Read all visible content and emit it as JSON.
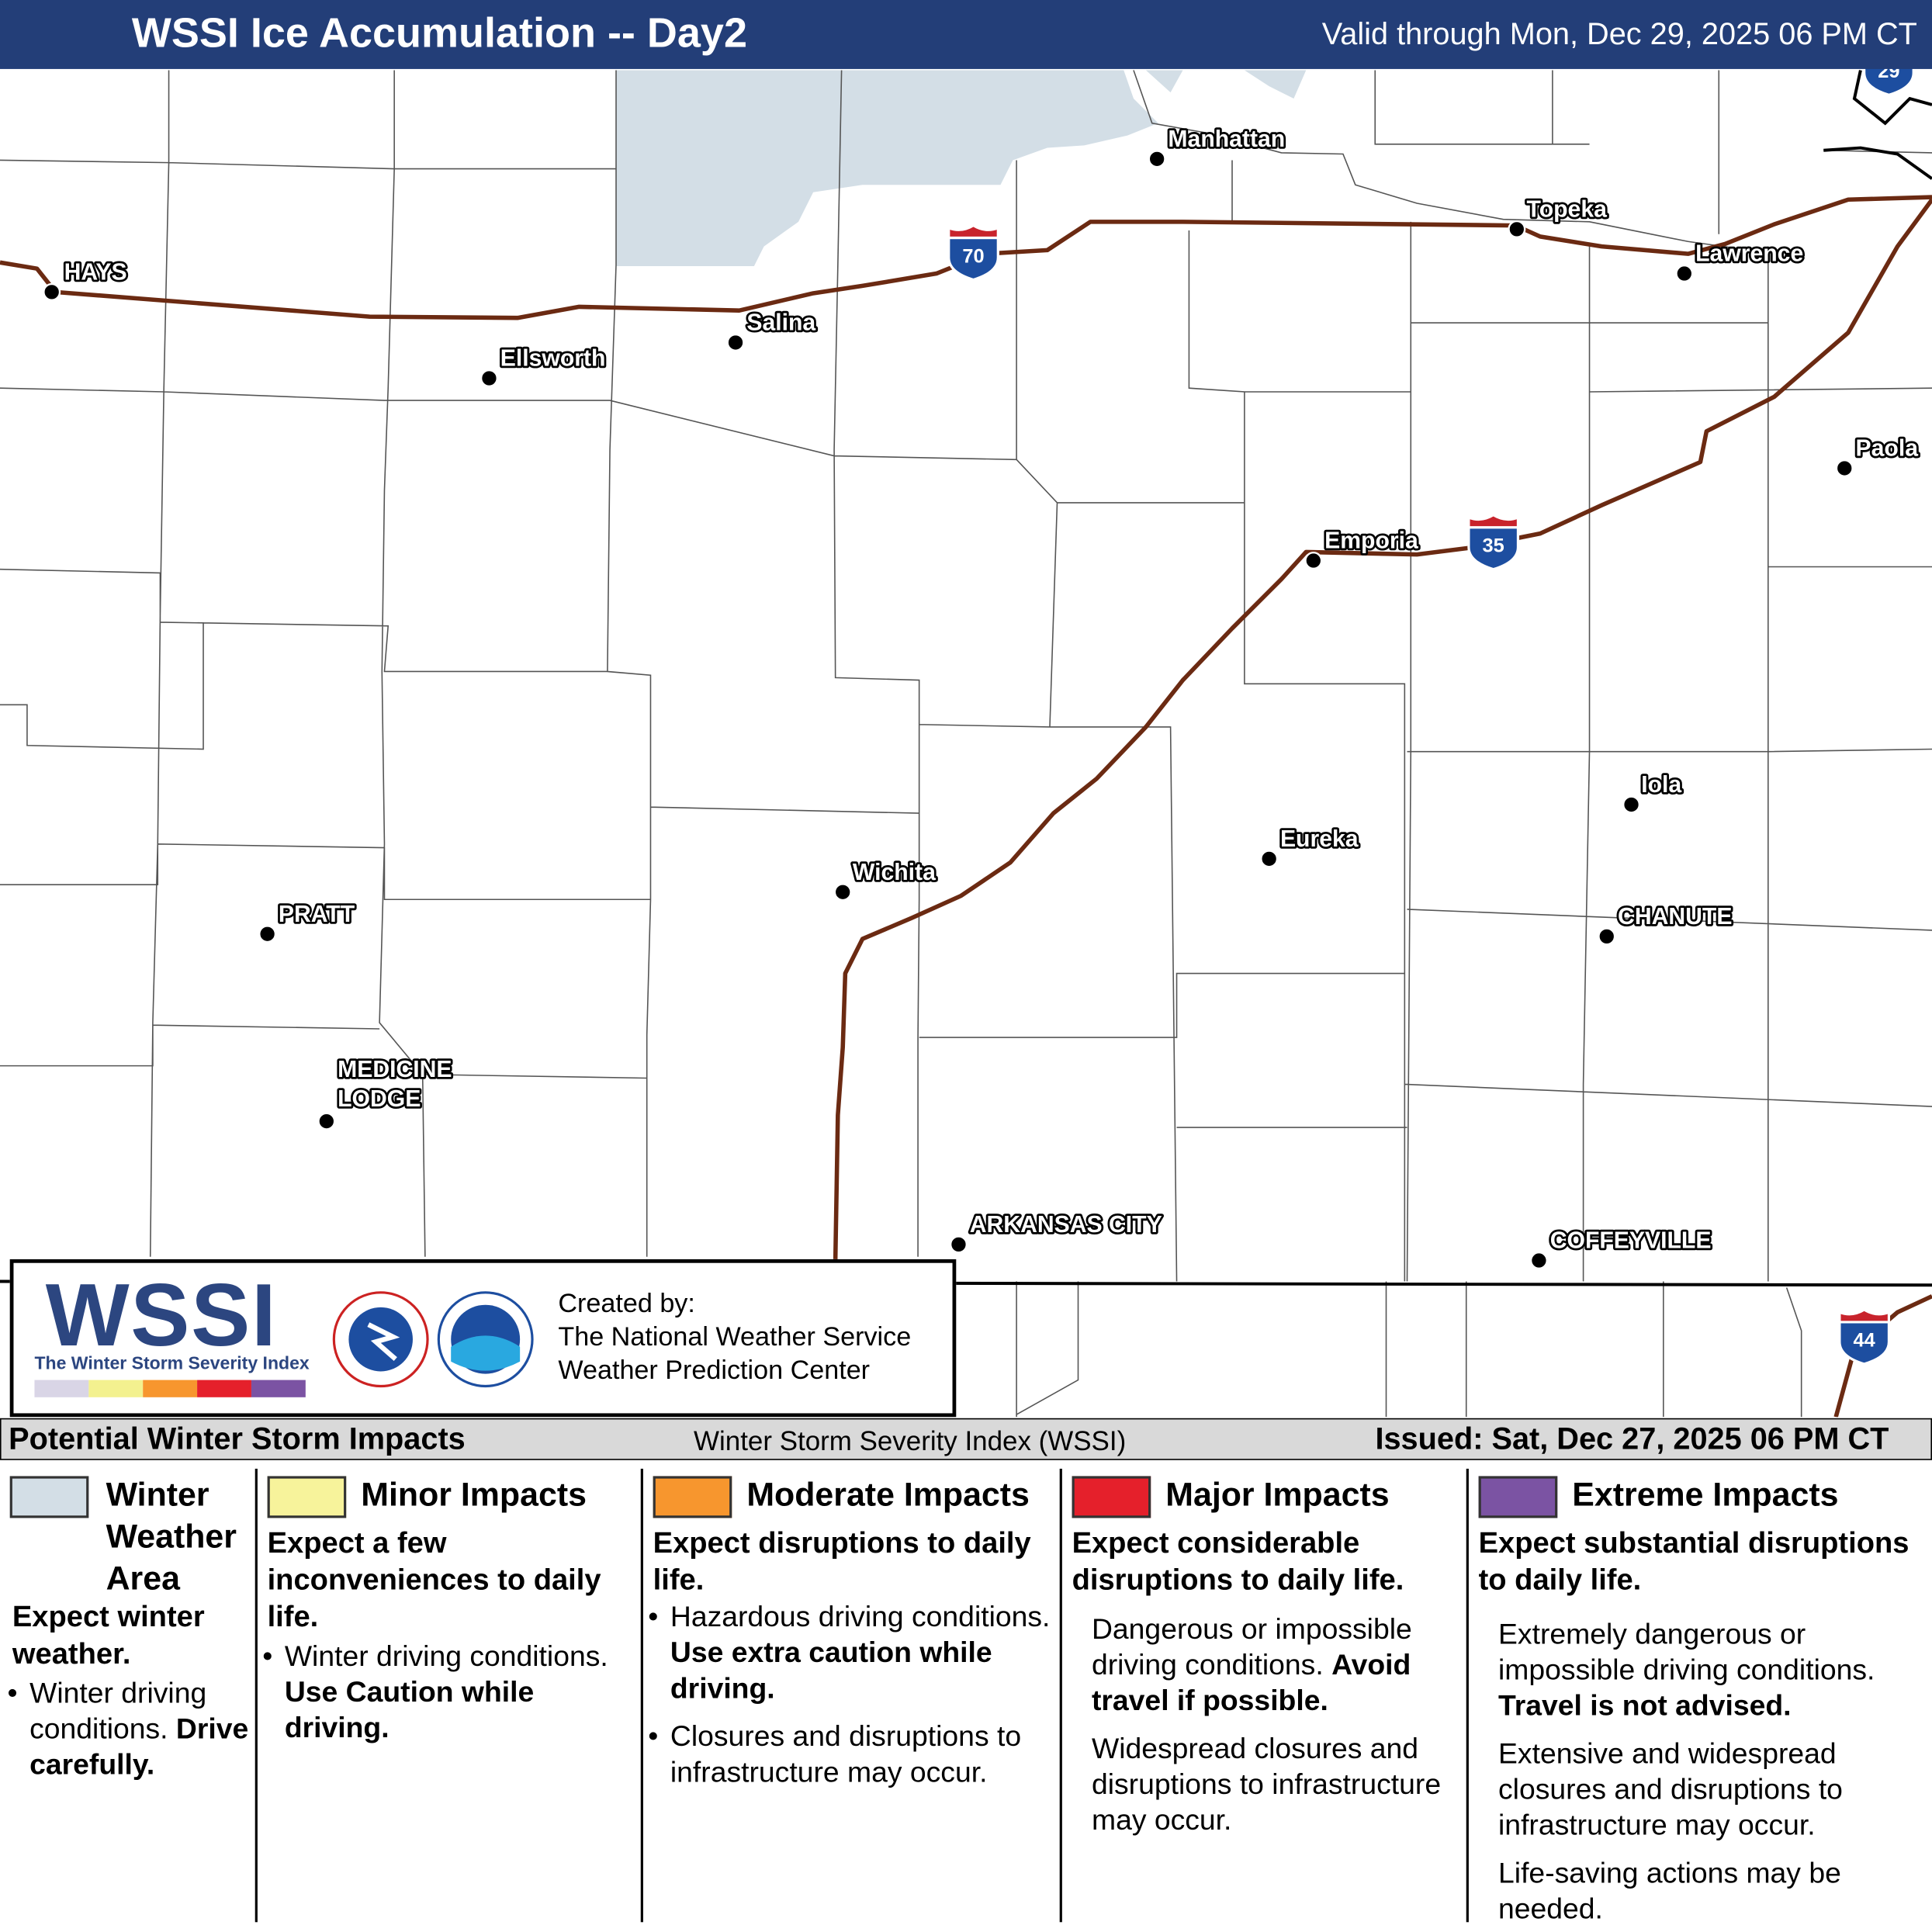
{
  "header": {
    "title": "WSSI Ice Accumulation -- Day2",
    "valid": "Valid through Mon, Dec 29, 2025 06 PM CT"
  },
  "map": {
    "cities": [
      {
        "lines": [
          "HAYS"
        ]
      },
      {
        "lines": [
          "Ellsworth"
        ]
      },
      {
        "lines": [
          "Salina"
        ]
      },
      {
        "lines": [
          "Manhattan"
        ]
      },
      {
        "lines": [
          "Topeka"
        ]
      },
      {
        "lines": [
          "Lawrence"
        ]
      },
      {
        "lines": [
          "Paola"
        ]
      },
      {
        "lines": [
          "Emporia"
        ]
      },
      {
        "lines": [
          "Wichita"
        ]
      },
      {
        "lines": [
          "Eureka"
        ]
      },
      {
        "lines": [
          "Iola"
        ]
      },
      {
        "lines": [
          "CHANUTE"
        ]
      },
      {
        "lines": [
          "PRATT"
        ]
      },
      {
        "lines": [
          "MEDICINE",
          "LODGE"
        ]
      },
      {
        "lines": [
          "ARKANSAS CITY"
        ]
      },
      {
        "lines": [
          "COFFEYVILLE"
        ]
      }
    ],
    "interstates": [
      "70",
      "35",
      "29",
      "44"
    ]
  },
  "credits": {
    "logo": "WSSI",
    "logo_subtitle": "The Winter Storm Severity Index",
    "strip_colors": [
      "#d9d5e6",
      "#f3f18f",
      "#f7962e",
      "#e5202b",
      "#7b53a3"
    ],
    "created_by": "Created by:",
    "org1": "The National Weather Service",
    "org2": "Weather Prediction Center"
  },
  "legend_bar": {
    "title": "Potential Winter Storm Impacts",
    "index": "Winter Storm Severity Index (WSSI)",
    "issued": "Issued: Sat, Dec 27, 2025 06 PM CT"
  },
  "categories": [
    {
      "name": "Winter Weather Area",
      "color": "#d3dee6",
      "headline": "Expect winter weather.",
      "paragraphs": [
        {
          "text": "Winter driving conditions.",
          "bold": "Drive carefully."
        }
      ]
    },
    {
      "name": "Minor Impacts",
      "color": "#f7f39b",
      "headline": "Expect a few inconveniences to daily life.",
      "paragraphs": [
        {
          "text": "Winter driving conditions.",
          "bold": "Use Caution while driving."
        }
      ]
    },
    {
      "name": "Moderate Impacts",
      "color": "#f7962e",
      "headline": "Expect disruptions to daily life.",
      "paragraphs": [
        {
          "text": "Hazardous driving conditions.",
          "bold": "Use extra caution while driving."
        },
        {
          "text": "Closures and disruptions to infrastructure may occur."
        }
      ]
    },
    {
      "name": "Major Impacts",
      "color": "#e5202b",
      "headline": "Expect considerable disruptions to daily life.",
      "paragraphs": [
        {
          "text": "Dangerous or impossible driving conditions.",
          "bold": "Avoid travel if possible."
        },
        {
          "text": "Widespread closures and disruptions to infrastructure may occur."
        }
      ]
    },
    {
      "name": "Extreme Impacts",
      "color": "#7b53a3",
      "headline": "Expect substantial disruptions to daily life.",
      "paragraphs": [
        {
          "text": "Extremely dangerous or impossible driving conditions.",
          "bold": "Travel is not advised."
        },
        {
          "text": "Extensive and widespread closures and disruptions to infrastructure may occur."
        },
        {
          "text": "Life-saving actions may be needed."
        }
      ]
    }
  ]
}
